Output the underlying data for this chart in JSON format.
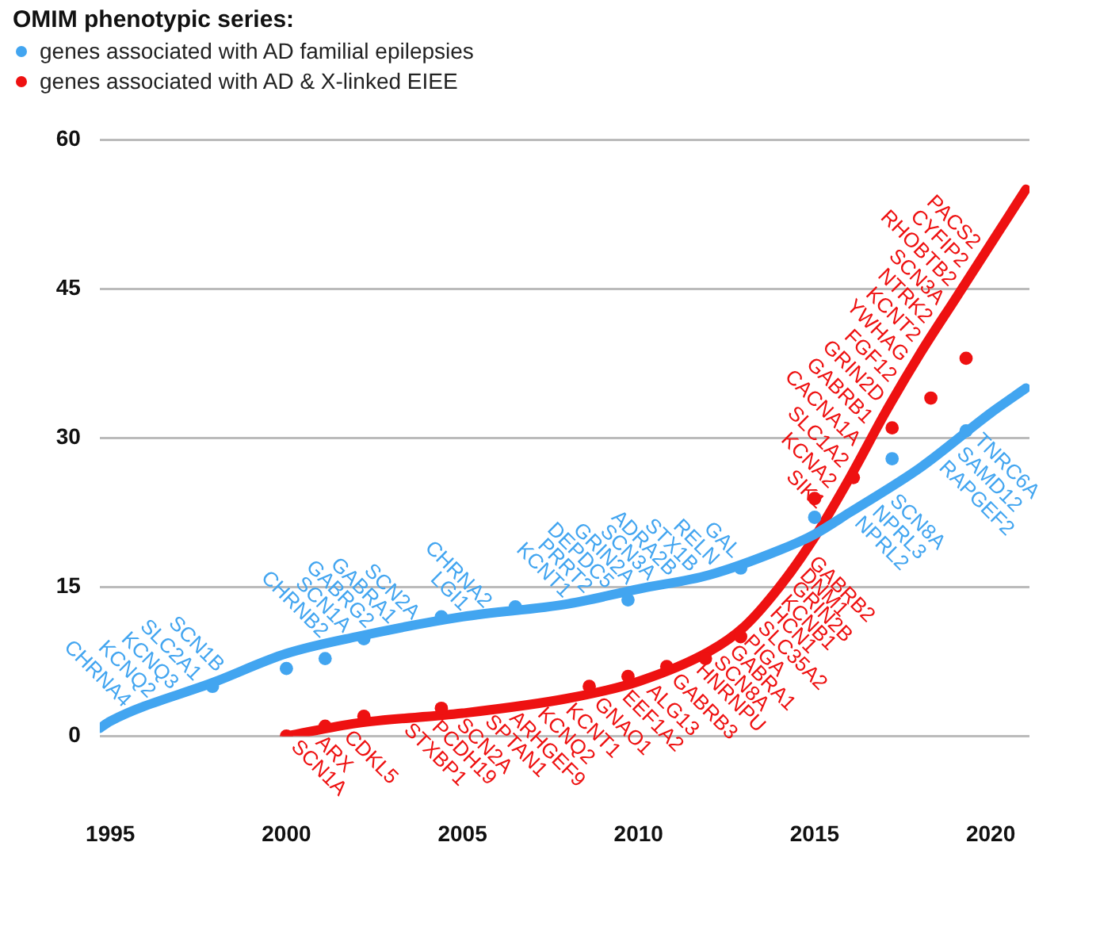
{
  "chart_data": {
    "type": "scatter",
    "legend_title": "OMIM phenotypic series:",
    "legend": "top left",
    "grid": "y",
    "xlim": [
      1994.7,
      2021.1
    ],
    "xticks": [
      1995,
      2000,
      2005,
      2010,
      2015,
      2020
    ],
    "ylim": [
      0,
      60
    ],
    "yticks": [
      0,
      15,
      30,
      45,
      60
    ],
    "series": [
      {
        "name": "genes associated with AD familial epilepsies",
        "color": "#42a5f0",
        "type": "scatter",
        "marker": "circle",
        "x": [
          1997.9,
          2000,
          2001.1,
          2002.2,
          2004.4,
          2006.5,
          2009.7,
          2012.9,
          2015,
          2017.2,
          2019.3
        ],
        "values": [
          5,
          6.8,
          7.8,
          9.8,
          12,
          13,
          13.7,
          16.9,
          22,
          27.9,
          30.7
        ]
      },
      {
        "name": "genes associated with AD & X-linked EIEE",
        "color": "#ee1111",
        "type": "scatter",
        "marker": "circle",
        "x": [
          2000,
          2001.1,
          2002.2,
          2004.4,
          2008.6,
          2009.7,
          2010.8,
          2011.9,
          2012.9,
          2015,
          2016.1,
          2017.2,
          2018.3,
          2019.3
        ],
        "values": [
          0,
          1,
          2,
          2.8,
          5,
          6,
          7,
          7.8,
          10,
          23.9,
          26,
          31,
          34,
          38
        ]
      },
      {
        "color": "#42a5f0",
        "type": "line",
        "marker": "none",
        "x": [
          1994.7,
          1995,
          1998,
          2000,
          2002,
          2005,
          2008,
          2010,
          2012,
          2014,
          2015,
          2016,
          2018,
          2020,
          2021
        ],
        "values": [
          0.8,
          1.5,
          5.5,
          8.3,
          10,
          12,
          13.3,
          14.8,
          16.2,
          18.7,
          20.3,
          22.5,
          27,
          32.5,
          35
        ]
      },
      {
        "color": "#ee1111",
        "type": "line",
        "marker": "none",
        "x": [
          2000,
          2002,
          2005,
          2008,
          2010,
          2012,
          2013,
          2014,
          2015,
          2016,
          2017,
          2018,
          2019,
          2020,
          2021
        ],
        "values": [
          0,
          1.3,
          2.3,
          3.8,
          5.5,
          8.5,
          11,
          15,
          20,
          26,
          32.5,
          38.5,
          44,
          49.5,
          55
        ]
      }
    ],
    "annotations": [
      {
        "text": "CHRNA4",
        "x": 1995.7,
        "y": 2.43
      },
      {
        "text": "KCNQ2",
        "x": 1996.4,
        "y": 3.37
      },
      {
        "text": "KCNQ3",
        "x": 1997.05,
        "y": 4.23
      },
      {
        "text": "SLC2A1",
        "x": 1997.7,
        "y": 5.1
      },
      {
        "text": "SCN1B",
        "x": 1998.35,
        "y": 5.99
      },
      {
        "text": "CHRNB2",
        "x": 2001.3,
        "y": 9.4
      },
      {
        "text": "SCN1A",
        "x": 2001.95,
        "y": 9.96
      },
      {
        "text": "GABRG2",
        "x": 2002.6,
        "y": 10.4
      },
      {
        "text": "GABRA1",
        "x": 2003.25,
        "y": 10.83
      },
      {
        "text": "SCN2A",
        "x": 2003.9,
        "y": 11.27
      },
      {
        "text": "LGI1",
        "x": 2005.3,
        "y": 12.13
      },
      {
        "text": "CHRNA2",
        "x": 2005.95,
        "y": 12.41
      },
      {
        "text": "KCNT1",
        "x": 2008.2,
        "y": 13.45
      },
      {
        "text": "PRRT2",
        "x": 2008.8,
        "y": 13.9
      },
      {
        "text": "DEPDC5",
        "x": 2009.4,
        "y": 14.35
      },
      {
        "text": "GRIN2A",
        "x": 2010.0,
        "y": 14.8
      },
      {
        "text": "SCN3A",
        "x": 2010.6,
        "y": 15.22
      },
      {
        "text": "ADRA2B",
        "x": 2011.2,
        "y": 15.64
      },
      {
        "text": "STX1B",
        "x": 2011.8,
        "y": 16.06
      },
      {
        "text": "RELN",
        "x": 2012.4,
        "y": 16.7
      },
      {
        "text": "GAL",
        "x": 2013.0,
        "y": 17.45
      },
      {
        "text": "NPRL2",
        "x": 2016.0,
        "y": 22.5
      },
      {
        "text": "NPRL3",
        "x": 2016.5,
        "y": 23.6
      },
      {
        "text": "SCN8A",
        "x": 2017.0,
        "y": 24.75
      },
      {
        "text": "RAPGEF2",
        "x": 2018.4,
        "y": 28.1
      },
      {
        "text": "SAMD12",
        "x": 2018.9,
        "y": 29.5
      },
      {
        "text": "TNRC6A",
        "x": 2019.4,
        "y": 30.85
      },
      {
        "text": "SCN1A",
        "x": 2000.0,
        "y": 0
      },
      {
        "text": "ARX",
        "x": 2000.7,
        "y": 0.46
      },
      {
        "text": "CDKL5",
        "x": 2001.5,
        "y": 0.98
      },
      {
        "text": "STXBP1",
        "x": 2003.2,
        "y": 1.7
      },
      {
        "text": "PCDH19",
        "x": 2004.0,
        "y": 1.97
      },
      {
        "text": "SCN2A",
        "x": 2004.7,
        "y": 2.2
      },
      {
        "text": "SPTAN1",
        "x": 2005.5,
        "y": 2.55
      },
      {
        "text": "ARHGEF9",
        "x": 2006.2,
        "y": 2.9
      },
      {
        "text": "KCNQ2",
        "x": 2007.0,
        "y": 3.3
      },
      {
        "text": "KCNT1",
        "x": 2007.8,
        "y": 3.7
      },
      {
        "text": "GNAO1",
        "x": 2008.6,
        "y": 4.31
      },
      {
        "text": "EEF1A2",
        "x": 2009.4,
        "y": 5.0
      },
      {
        "text": "ALG13",
        "x": 2010.1,
        "y": 5.65
      },
      {
        "text": "GABRB3",
        "x": 2010.8,
        "y": 6.7
      },
      {
        "text": "HNRNPU",
        "x": 2011.5,
        "y": 7.75
      },
      {
        "text": "SCN8A",
        "x": 2012.0,
        "y": 8.5
      },
      {
        "text": "GABRA1",
        "x": 2012.45,
        "y": 9.6
      },
      {
        "text": "PIGA",
        "x": 2012.85,
        "y": 10.6
      },
      {
        "text": "SLC35A2",
        "x": 2013.25,
        "y": 12.0
      },
      {
        "text": "HCN1",
        "x": 2013.6,
        "y": 13.4
      },
      {
        "text": "KCNB1",
        "x": 2013.9,
        "y": 14.6
      },
      {
        "text": "GRIN2B",
        "x": 2014.2,
        "y": 16.0
      },
      {
        "text": "DNM1",
        "x": 2014.45,
        "y": 17.25
      },
      {
        "text": "GABRB2",
        "x": 2014.7,
        "y": 18.5
      },
      {
        "text": "SIK1",
        "x": 2015.4,
        "y": 22.4
      },
      {
        "text": "KCNA2",
        "x": 2015.74,
        "y": 24.44
      },
      {
        "text": "SLC1A2",
        "x": 2016.08,
        "y": 26.52
      },
      {
        "text": "CACNA1A",
        "x": 2016.42,
        "y": 28.73
      },
      {
        "text": "GABRB1",
        "x": 2016.76,
        "y": 30.94
      },
      {
        "text": "GRIN2D",
        "x": 2017.1,
        "y": 33.1
      },
      {
        "text": "FGF12",
        "x": 2017.44,
        "y": 35.14
      },
      {
        "text": "YWHAG",
        "x": 2017.78,
        "y": 37.18
      },
      {
        "text": "KCNT2",
        "x": 2018.12,
        "y": 39.16
      },
      {
        "text": "NTRK2",
        "x": 2018.46,
        "y": 41.03
      },
      {
        "text": "SCN3A",
        "x": 2018.8,
        "y": 42.9
      },
      {
        "text": "RHOBTB2",
        "x": 2019.14,
        "y": 44.77
      },
      {
        "text": "CYFIP2",
        "x": 2019.48,
        "y": 46.64
      },
      {
        "text": "PACS2",
        "x": 2019.82,
        "y": 48.51
      }
    ]
  }
}
